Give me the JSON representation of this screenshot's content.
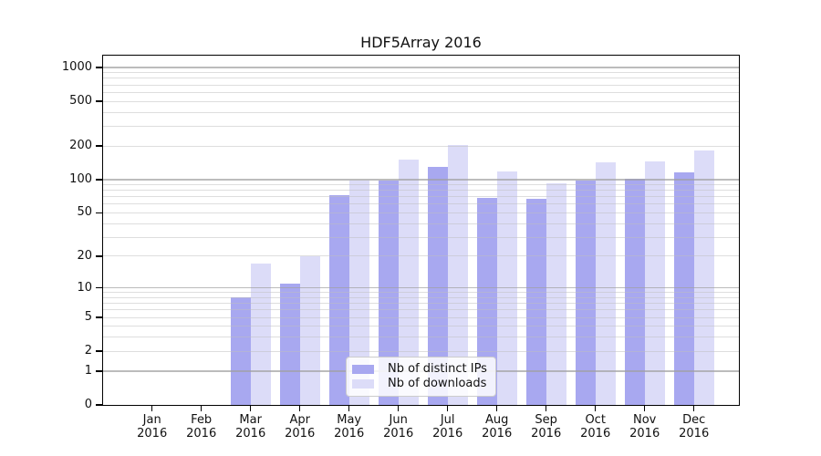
{
  "chart_data": {
    "type": "bar",
    "title": "HDF5Array 2016",
    "categories": [
      "Jan",
      "Feb",
      "Mar",
      "Apr",
      "May",
      "Jun",
      "Jul",
      "Aug",
      "Sep",
      "Oct",
      "Nov",
      "Dec"
    ],
    "year": "2016",
    "series": [
      {
        "name": "Nb of distinct IPs",
        "color": "#a8a8f0",
        "values": [
          0,
          0,
          8,
          11,
          72,
          98,
          129,
          68,
          67,
          98,
          102,
          116
        ]
      },
      {
        "name": "Nb of downloads",
        "color": "#dcdcf8",
        "values": [
          0,
          0,
          17,
          20,
          97,
          152,
          204,
          118,
          92,
          143,
          145,
          182
        ]
      }
    ],
    "y_axis": {
      "scale": "log10(1+x)",
      "tick_values": [
        0,
        1,
        2,
        5,
        10,
        20,
        50,
        100,
        200,
        500,
        1000
      ],
      "major_gridlines": [
        1,
        10,
        100,
        1000
      ],
      "ylim": [
        0,
        1000
      ]
    },
    "x_axis": {
      "tick_per_month": true
    },
    "legend": {
      "position": "bottom-center"
    },
    "colors": {
      "frame": "#000000",
      "text": "#111111",
      "minor_grid": "rgba(190,190,190,0.5)",
      "major_grid": "rgba(160,160,160,0.7)"
    },
    "grid": true
  }
}
